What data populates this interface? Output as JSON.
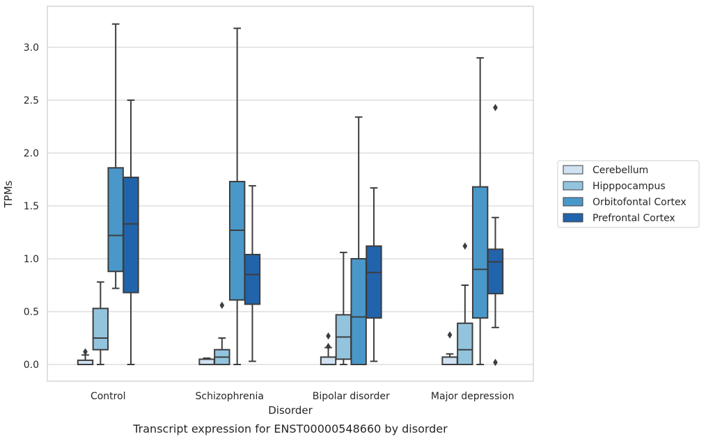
{
  "chart_data": {
    "type": "boxplot",
    "xlabel": "Disorder",
    "ylabel": "TPMs",
    "caption": "Transcript expression for ENST00000548660 by disorder",
    "ylim": [
      -0.16,
      3.4
    ],
    "yticks": [
      "0.0",
      "0.5",
      "1.0",
      "1.5",
      "2.0",
      "2.5",
      "3.0"
    ],
    "ytick_values": [
      0,
      0.5,
      1.0,
      1.5,
      2.0,
      2.5,
      3.0
    ],
    "grid": "horizontal",
    "legend_position": "right",
    "categories": [
      "Control",
      "Schizophrenia",
      "Bipolar disorder",
      "Major depression"
    ],
    "series": [
      {
        "name": "Cerebellum",
        "color": "#d0e1f2",
        "boxes": [
          {
            "whislo": 0.0,
            "q1": 0.0,
            "med": 0.0,
            "q3": 0.04,
            "whishi": 0.09,
            "fliers": [
              0.12
            ]
          },
          {
            "whislo": 0.0,
            "q1": 0.0,
            "med": 0.0,
            "q3": 0.05,
            "whishi": 0.06,
            "fliers": []
          },
          {
            "whislo": 0.0,
            "q1": 0.0,
            "med": 0.0,
            "q3": 0.07,
            "whishi": 0.16,
            "fliers": [
              0.17,
              0.27
            ]
          },
          {
            "whislo": 0.0,
            "q1": 0.0,
            "med": 0.0,
            "q3": 0.07,
            "whishi": 0.1,
            "fliers": [
              0.28
            ]
          }
        ]
      },
      {
        "name": "Hipppocampus",
        "color": "#93c4de",
        "boxes": [
          {
            "whislo": 0.0,
            "q1": 0.14,
            "med": 0.25,
            "q3": 0.53,
            "whishi": 0.78,
            "fliers": []
          },
          {
            "whislo": 0.0,
            "q1": 0.0,
            "med": 0.07,
            "q3": 0.14,
            "whishi": 0.25,
            "fliers": [
              0.56
            ]
          },
          {
            "whislo": 0.0,
            "q1": 0.05,
            "med": 0.26,
            "q3": 0.47,
            "whishi": 1.06,
            "fliers": []
          },
          {
            "whislo": 0.0,
            "q1": 0.0,
            "med": 0.14,
            "q3": 0.39,
            "whishi": 0.75,
            "fliers": [
              1.12
            ]
          }
        ]
      },
      {
        "name": "Orbitofontal Cortex",
        "color": "#4a98c9",
        "boxes": [
          {
            "whislo": 0.72,
            "q1": 0.88,
            "med": 1.22,
            "q3": 1.86,
            "whishi": 3.22,
            "fliers": []
          },
          {
            "whislo": 0.0,
            "q1": 0.61,
            "med": 1.27,
            "q3": 1.73,
            "whishi": 3.18,
            "fliers": []
          },
          {
            "whislo": 0.0,
            "q1": 0.0,
            "med": 0.45,
            "q3": 1.0,
            "whishi": 2.34,
            "fliers": []
          },
          {
            "whislo": 0.0,
            "q1": 0.44,
            "med": 0.9,
            "q3": 1.68,
            "whishi": 2.9,
            "fliers": []
          }
        ]
      },
      {
        "name": "Prefrontal Cortex",
        "color": "#2264ab",
        "boxes": [
          {
            "whislo": 0.0,
            "q1": 0.68,
            "med": 1.33,
            "q3": 1.77,
            "whishi": 2.5,
            "fliers": []
          },
          {
            "whislo": 0.03,
            "q1": 0.57,
            "med": 0.85,
            "q3": 1.04,
            "whishi": 1.69,
            "fliers": []
          },
          {
            "whislo": 0.03,
            "q1": 0.44,
            "med": 0.87,
            "q3": 1.12,
            "whishi": 1.67,
            "fliers": []
          },
          {
            "whislo": 0.35,
            "q1": 0.67,
            "med": 0.97,
            "q3": 1.09,
            "whishi": 1.39,
            "fliers": [
              0.02,
              2.43
            ]
          }
        ]
      }
    ]
  }
}
